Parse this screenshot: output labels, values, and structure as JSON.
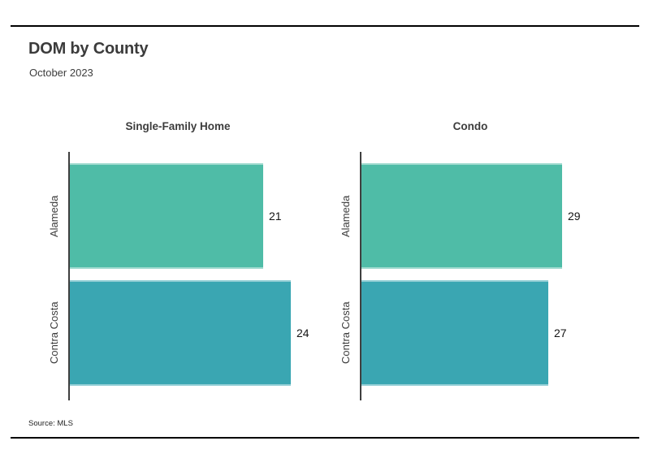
{
  "header": {
    "title": "DOM by County",
    "subtitle": "October 2023"
  },
  "footer": {
    "source": "Source: MLS"
  },
  "chart_data": [
    {
      "type": "bar",
      "orientation": "horizontal",
      "title": "Single-Family Home",
      "categories": [
        "Alameda",
        "Contra Costa"
      ],
      "values": [
        21,
        24
      ],
      "xlim": [
        0,
        30
      ],
      "bar_colors": [
        "#4fbca7",
        "#3aa6b2"
      ],
      "grid": false,
      "value_labels_shown": true
    },
    {
      "type": "bar",
      "orientation": "horizontal",
      "title": "Condo",
      "categories": [
        "Alameda",
        "Contra Costa"
      ],
      "values": [
        29,
        27
      ],
      "xlim": [
        0,
        40
      ],
      "bar_colors": [
        "#4fbca7",
        "#3aa6b2"
      ],
      "grid": false,
      "value_labels_shown": true
    }
  ]
}
